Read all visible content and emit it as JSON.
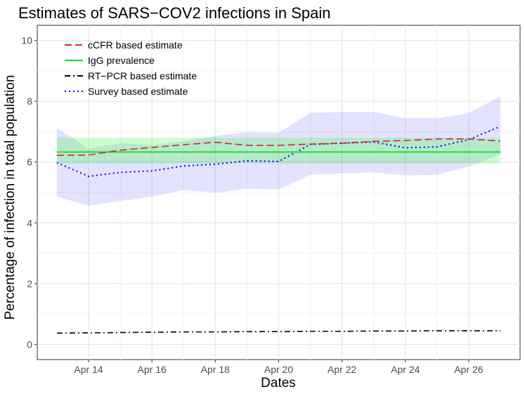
{
  "chart_data": {
    "type": "line",
    "title": "Estimates of SARS−COV2 infections in Spain",
    "xlabel": "Dates",
    "ylabel": "Percentage of infection in total population",
    "x": [
      13,
      14,
      15,
      16,
      17,
      18,
      19,
      20,
      21,
      22,
      23,
      24,
      25,
      26,
      27
    ],
    "x_tick_values": [
      14,
      16,
      18,
      20,
      22,
      24,
      26
    ],
    "x_tick_labels": [
      "Apr 14",
      "Apr 16",
      "Apr 18",
      "Apr 20",
      "Apr 22",
      "Apr 24",
      "Apr 26"
    ],
    "xlim": [
      12.38,
      27.62
    ],
    "y_tick_values": [
      0,
      2,
      4,
      6,
      8,
      10
    ],
    "y_tick_labels": [
      "0",
      "2",
      "4",
      "6",
      "8",
      "10"
    ],
    "ylim": [
      -0.5,
      10.5
    ],
    "grid": true,
    "legend_position": "top-left",
    "series": [
      {
        "name": "cCFR based estimate",
        "color": "#d62728",
        "dash": "long-dash",
        "values": [
          6.22,
          6.23,
          6.39,
          6.48,
          6.57,
          6.65,
          6.55,
          6.55,
          6.59,
          6.62,
          6.68,
          6.71,
          6.76,
          6.76,
          6.69
        ]
      },
      {
        "name": "IgG prevalence",
        "color": "#00dd00",
        "dash": "solid",
        "values": [
          6.33,
          6.33,
          6.33,
          6.33,
          6.33,
          6.33,
          6.33,
          6.33,
          6.33,
          6.33,
          6.33,
          6.33,
          6.33,
          6.33,
          6.33
        ],
        "ribbon_lower": [
          5.96,
          5.96,
          5.96,
          5.96,
          5.96,
          5.96,
          5.96,
          5.96,
          5.96,
          5.96,
          5.96,
          5.96,
          5.96,
          5.96,
          5.96
        ],
        "ribbon_upper": [
          6.8,
          6.8,
          6.8,
          6.8,
          6.8,
          6.8,
          6.8,
          6.8,
          6.8,
          6.8,
          6.8,
          6.8,
          6.8,
          6.8,
          6.8
        ]
      },
      {
        "name": "RT−PCR based estimate",
        "color": "#000000",
        "dash": "dash-dot",
        "values": [
          0.37,
          0.38,
          0.39,
          0.4,
          0.41,
          0.41,
          0.42,
          0.42,
          0.43,
          0.43,
          0.44,
          0.44,
          0.45,
          0.45,
          0.45
        ]
      },
      {
        "name": "Survey based estimate",
        "color": "#0000ee",
        "dash": "dotted",
        "values": [
          5.98,
          5.53,
          5.66,
          5.71,
          5.87,
          5.93,
          6.04,
          6.02,
          6.58,
          6.62,
          6.66,
          6.47,
          6.5,
          6.74,
          7.17
        ],
        "ribbon_lower": [
          4.86,
          4.56,
          4.72,
          4.86,
          5.08,
          4.99,
          5.12,
          5.09,
          5.58,
          5.62,
          5.66,
          5.56,
          5.58,
          5.85,
          6.26
        ],
        "ribbon_upper": [
          7.13,
          6.44,
          6.62,
          6.56,
          6.68,
          6.86,
          6.99,
          6.96,
          7.62,
          7.65,
          7.65,
          7.44,
          7.44,
          7.61,
          8.17
        ]
      }
    ]
  }
}
